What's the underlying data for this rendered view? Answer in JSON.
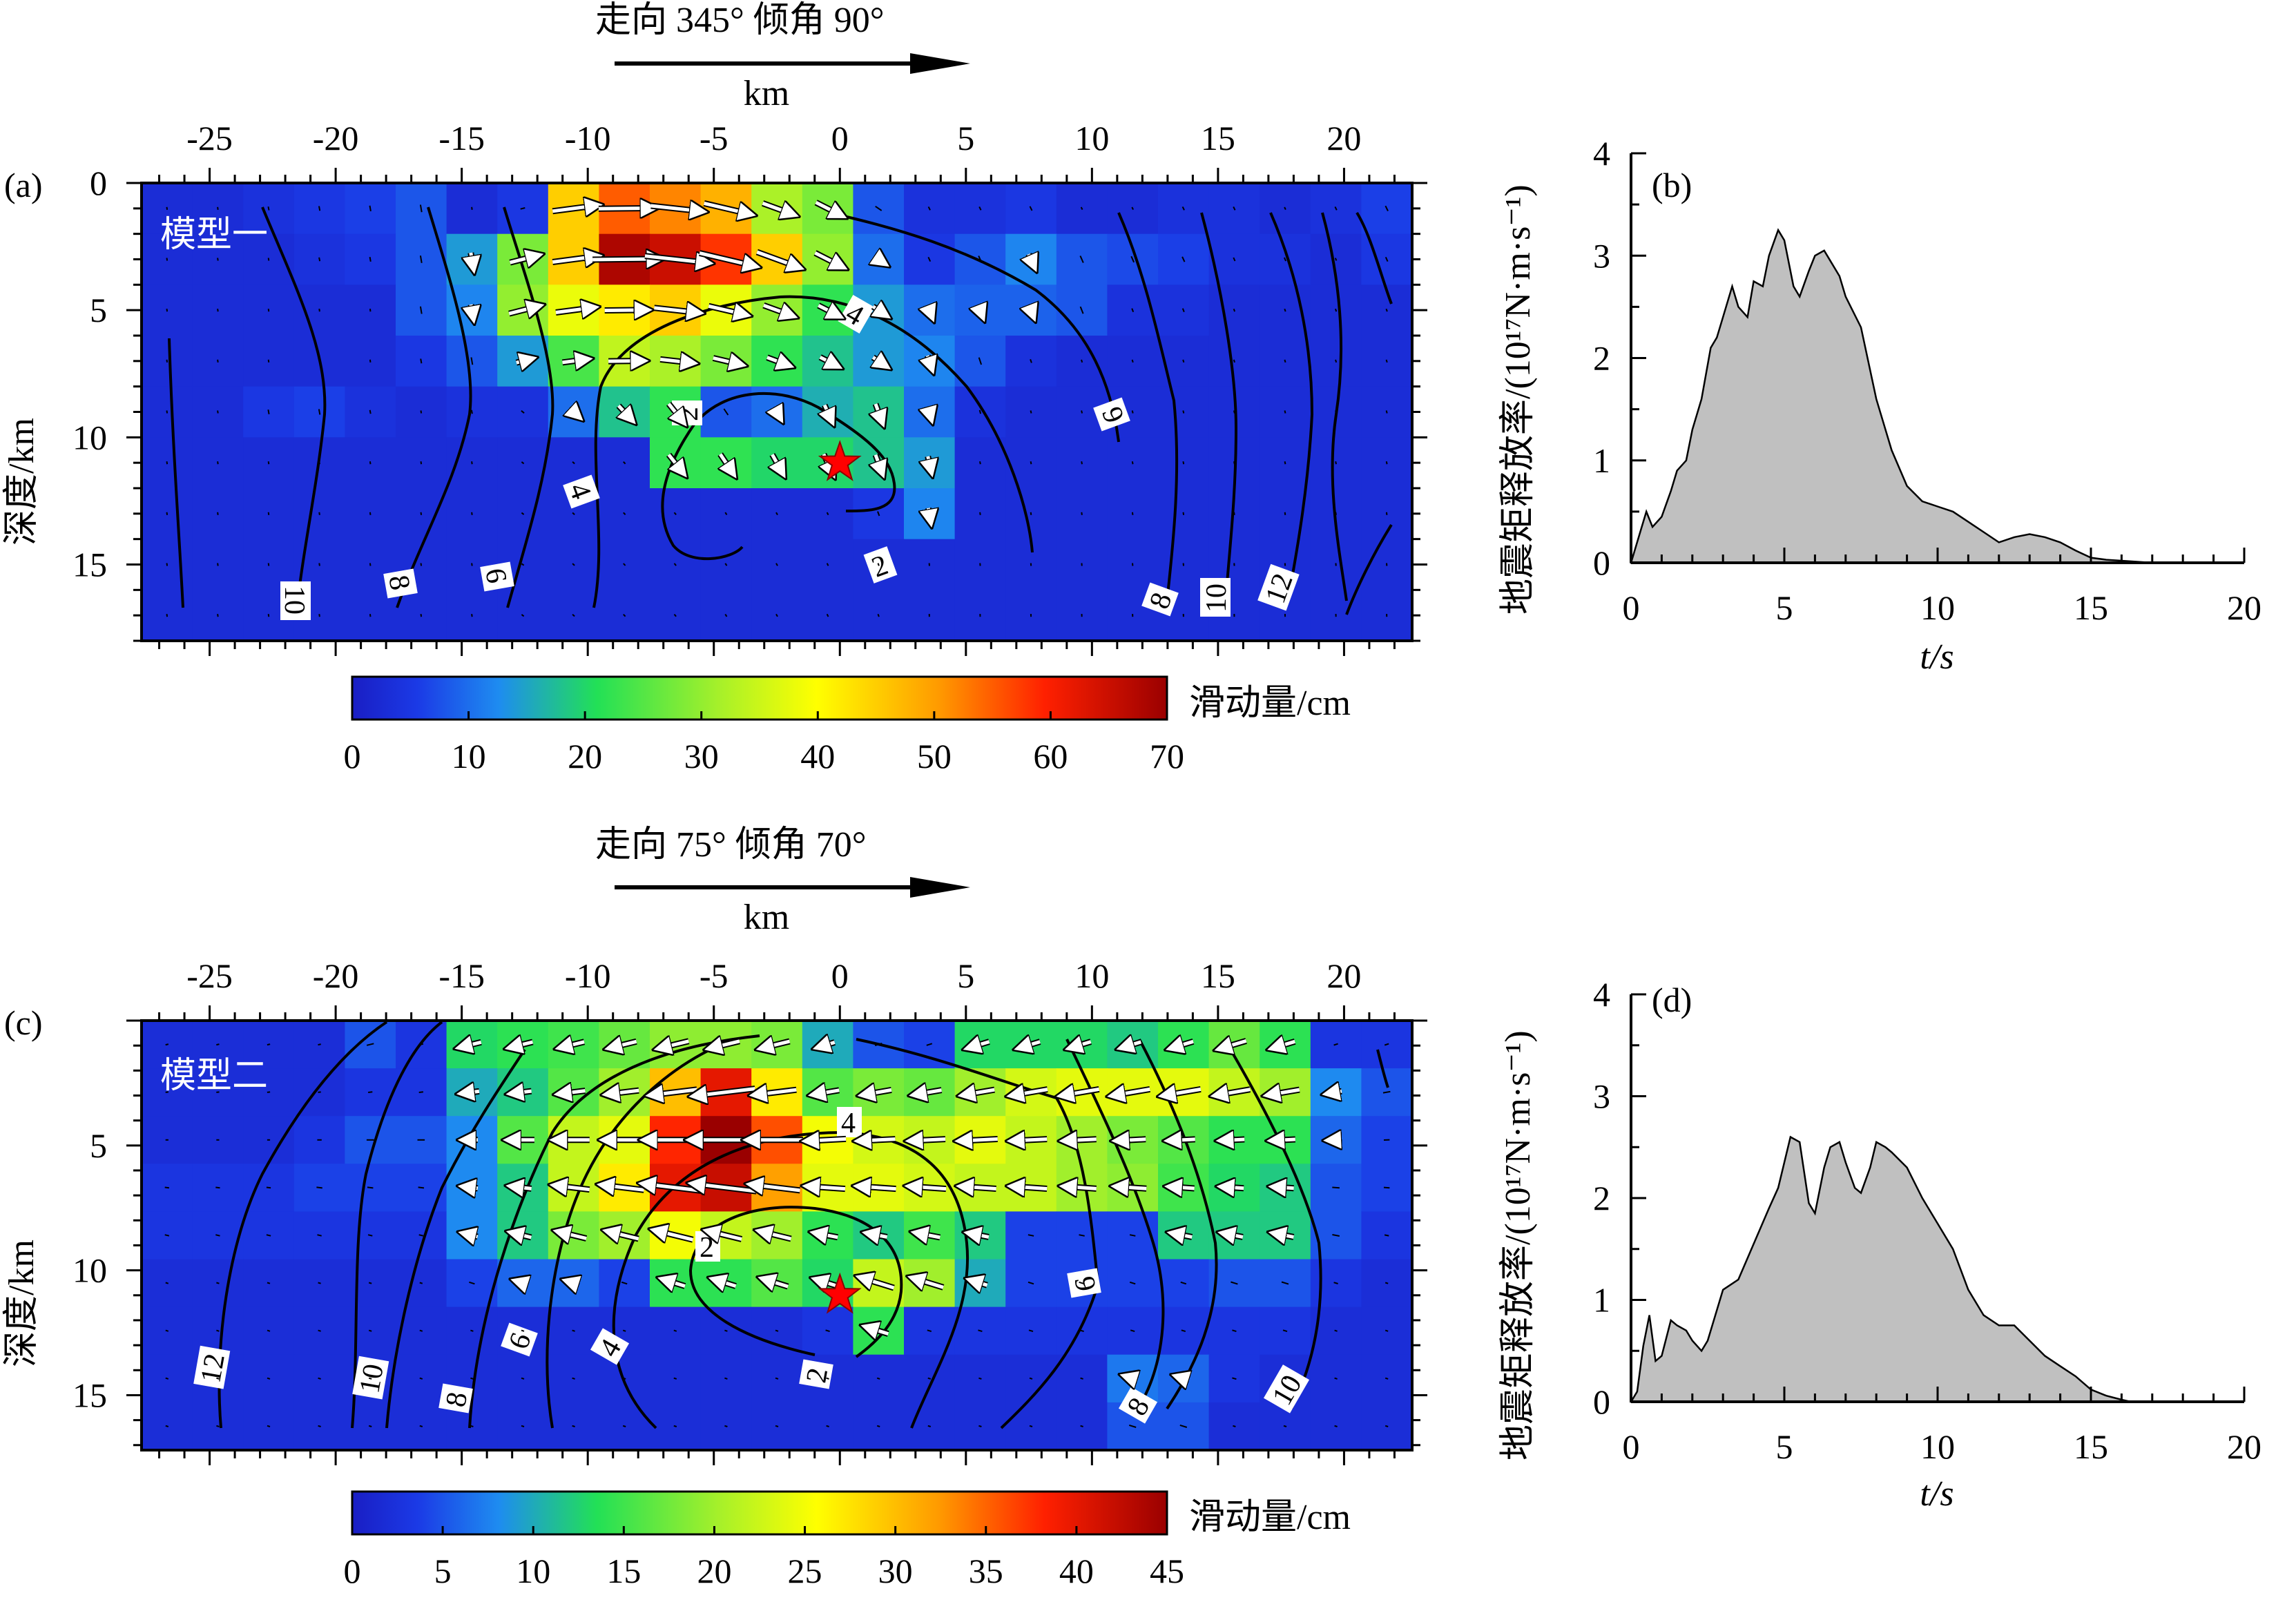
{
  "chart_data": [
    {
      "panel": "a",
      "type": "heatmap",
      "panel_label": "(a)",
      "model_label": "模型一",
      "header": "走向 345°    倾角 90°",
      "xlabel": "km",
      "ylabel": "深度/km",
      "x_ticks": [
        -25,
        -20,
        -15,
        -10,
        -5,
        0,
        5,
        10,
        15,
        20
      ],
      "y_ticks": [
        0,
        5,
        10,
        15
      ],
      "xlim": [
        -27.7,
        22.7
      ],
      "ylim": [
        0,
        18
      ],
      "colorbar": {
        "label": "滑动量/cm",
        "min": 0,
        "max": 70,
        "ticks": [
          0,
          10,
          20,
          30,
          40,
          50,
          60,
          70
        ]
      },
      "hypocenter": [
        0,
        11
      ],
      "slip_grid": {
        "cols": 25,
        "rows": 9,
        "x0": -27.7,
        "dx": 2.016,
        "y0": 0,
        "dy": 2,
        "values": [
          [
            3,
            3,
            4,
            5,
            6,
            8,
            3,
            5,
            45,
            55,
            52,
            48,
            32,
            28,
            8,
            4,
            4,
            5,
            3,
            3,
            4,
            4,
            3,
            4,
            6
          ],
          [
            3,
            3,
            3,
            4,
            5,
            8,
            14,
            28,
            45,
            68,
            65,
            58,
            45,
            30,
            10,
            5,
            8,
            12,
            8,
            7,
            6,
            4,
            4,
            3,
            5
          ],
          [
            3,
            3,
            3,
            3,
            3,
            8,
            12,
            30,
            38,
            42,
            45,
            38,
            30,
            22,
            14,
            10,
            9,
            9,
            8,
            4,
            4,
            3,
            3,
            3,
            3
          ],
          [
            3,
            3,
            3,
            3,
            3,
            5,
            8,
            14,
            24,
            34,
            32,
            28,
            22,
            18,
            14,
            12,
            8,
            4,
            3,
            3,
            3,
            3,
            3,
            3,
            3
          ],
          [
            3,
            3,
            5,
            6,
            4,
            3,
            4,
            4,
            10,
            18,
            22,
            8,
            10,
            16,
            18,
            10,
            4,
            3,
            3,
            3,
            3,
            3,
            3,
            3,
            3
          ],
          [
            3,
            3,
            3,
            3,
            3,
            3,
            3,
            3,
            3,
            3,
            22,
            22,
            20,
            20,
            18,
            14,
            3,
            3,
            3,
            3,
            3,
            3,
            3,
            3,
            3
          ],
          [
            3,
            3,
            3,
            3,
            3,
            3,
            3,
            3,
            3,
            3,
            3,
            3,
            3,
            3,
            5,
            12,
            3,
            3,
            3,
            3,
            3,
            3,
            3,
            3,
            3
          ],
          [
            3,
            3,
            3,
            3,
            3,
            3,
            3,
            3,
            3,
            3,
            3,
            3,
            3,
            3,
            3,
            3,
            3,
            3,
            3,
            3,
            3,
            3,
            3,
            3,
            3
          ],
          [
            3,
            3,
            3,
            3,
            3,
            3,
            3,
            3,
            3,
            3,
            3,
            3,
            3,
            3,
            3,
            3,
            3,
            3,
            3,
            3,
            3,
            3,
            3,
            3,
            3
          ]
        ]
      },
      "contour_labels": [
        "2",
        "4",
        "6",
        "8",
        "10",
        "12"
      ]
    },
    {
      "panel": "b",
      "type": "area",
      "panel_label": "(b)",
      "ylabel": "地震矩释放率/(10¹⁷N·m·s⁻¹)",
      "xlabel": "t/s",
      "xlim": [
        0,
        20
      ],
      "ylim": [
        0,
        4
      ],
      "x_ticks": [
        0,
        5,
        10,
        15,
        20
      ],
      "y_ticks": [
        0,
        1,
        2,
        3,
        4
      ],
      "x": [
        0,
        0.3,
        0.5,
        0.7,
        1.0,
        1.3,
        1.5,
        1.8,
        2.0,
        2.3,
        2.6,
        2.8,
        3.0,
        3.3,
        3.5,
        3.8,
        4.0,
        4.3,
        4.5,
        4.8,
        5.0,
        5.3,
        5.5,
        5.8,
        6.0,
        6.3,
        6.5,
        6.8,
        7.0,
        7.5,
        8.0,
        8.5,
        9.0,
        9.5,
        10.0,
        10.5,
        11.0,
        11.5,
        12.0,
        12.5,
        13.0,
        13.5,
        14.0,
        14.5,
        15.0,
        15.5,
        16.0,
        16.5,
        17.0
      ],
      "y": [
        0,
        0.3,
        0.5,
        0.35,
        0.45,
        0.7,
        0.9,
        1.0,
        1.3,
        1.6,
        2.1,
        2.2,
        2.4,
        2.7,
        2.5,
        2.4,
        2.75,
        2.7,
        3.0,
        3.25,
        3.15,
        2.7,
        2.6,
        2.85,
        3.0,
        3.05,
        2.95,
        2.8,
        2.6,
        2.3,
        1.6,
        1.1,
        0.75,
        0.6,
        0.55,
        0.5,
        0.4,
        0.3,
        0.2,
        0.25,
        0.28,
        0.25,
        0.2,
        0.12,
        0.05,
        0.03,
        0.02,
        0.01,
        0
      ]
    },
    {
      "panel": "c",
      "type": "heatmap",
      "panel_label": "(c)",
      "model_label": "模型二",
      "header": "走向 75°    倾角 70°",
      "xlabel": "km",
      "ylabel": "深度/km",
      "x_ticks": [
        -25,
        -20,
        -15,
        -10,
        -5,
        0,
        5,
        10,
        15,
        20
      ],
      "y_ticks": [
        5,
        10,
        15
      ],
      "xlim": [
        -27.7,
        22.7
      ],
      "ylim": [
        0,
        17.2
      ],
      "colorbar": {
        "label": "滑动量/cm",
        "min": 0,
        "max": 45,
        "ticks": [
          0,
          5,
          10,
          15,
          20,
          25,
          30,
          35,
          40,
          45
        ]
      },
      "hypocenter": [
        0,
        11
      ],
      "slip_grid": {
        "cols": 25,
        "rows": 9,
        "x0": -27.7,
        "dx": 2.016,
        "y0": 0,
        "dy": 1.911,
        "values": [
          [
            2,
            2,
            2,
            2,
            5,
            3,
            13,
            14,
            15,
            17,
            19,
            19,
            18,
            10,
            5,
            4,
            13,
            13,
            13,
            12,
            14,
            17,
            14,
            3,
            3
          ],
          [
            2,
            2,
            2,
            2,
            3,
            3,
            10,
            12,
            16,
            20,
            30,
            40,
            27,
            16,
            18,
            17,
            20,
            23,
            24,
            24,
            24,
            22,
            20,
            8,
            5
          ],
          [
            2,
            2,
            2,
            3,
            5,
            5,
            8,
            16,
            22,
            24,
            38,
            45,
            36,
            25,
            23,
            22,
            24,
            22,
            20,
            18,
            16,
            14,
            14,
            6,
            4
          ],
          [
            3,
            3,
            3,
            4,
            4,
            4,
            8,
            12,
            22,
            27,
            40,
            42,
            32,
            24,
            24,
            23,
            22,
            22,
            20,
            19,
            15,
            13,
            12,
            5,
            4
          ],
          [
            3,
            3,
            3,
            3,
            3,
            3,
            8,
            12,
            18,
            20,
            25,
            22,
            20,
            14,
            12,
            15,
            12,
            4,
            4,
            4,
            12,
            12,
            12,
            5,
            3
          ],
          [
            2,
            2,
            2,
            2,
            2,
            2,
            4,
            6,
            6,
            4,
            14,
            14,
            16,
            13,
            22,
            20,
            10,
            4,
            4,
            4,
            4,
            5,
            5,
            3,
            2
          ],
          [
            2,
            2,
            2,
            2,
            2,
            2,
            2,
            2,
            2,
            2,
            2,
            2,
            2,
            3,
            14,
            3,
            3,
            3,
            3,
            3,
            3,
            3,
            3,
            2,
            2
          ],
          [
            2,
            2,
            2,
            2,
            2,
            2,
            2,
            2,
            2,
            2,
            2,
            2,
            2,
            2,
            2,
            2,
            2,
            2,
            2,
            7,
            6,
            3,
            2,
            2,
            2
          ],
          [
            2,
            2,
            2,
            2,
            2,
            2,
            2,
            2,
            2,
            2,
            2,
            2,
            2,
            2,
            2,
            2,
            2,
            2,
            2,
            5,
            5,
            2,
            2,
            2,
            2
          ]
        ]
      },
      "contour_labels": [
        "2",
        "4",
        "6",
        "8",
        "10",
        "12"
      ]
    },
    {
      "panel": "d",
      "type": "area",
      "panel_label": "(d)",
      "ylabel": "地震矩释放率/(10¹⁷N·m·s⁻¹)",
      "xlabel": "t/s",
      "xlim": [
        0,
        20
      ],
      "ylim": [
        0,
        4
      ],
      "x_ticks": [
        0,
        5,
        10,
        15,
        20
      ],
      "y_ticks": [
        0,
        1,
        2,
        3,
        4
      ],
      "x": [
        0,
        0.2,
        0.4,
        0.6,
        0.8,
        1.0,
        1.3,
        1.5,
        1.8,
        2.0,
        2.3,
        2.5,
        3.0,
        3.5,
        4.0,
        4.5,
        4.8,
        5.0,
        5.2,
        5.5,
        5.8,
        6.0,
        6.3,
        6.5,
        6.8,
        7.0,
        7.3,
        7.5,
        7.8,
        8.0,
        8.3,
        8.5,
        9.0,
        9.5,
        10.0,
        10.5,
        11.0,
        11.5,
        12.0,
        12.5,
        13.0,
        13.5,
        14.0,
        14.5,
        15.0,
        15.5,
        16.0,
        16.3
      ],
      "y": [
        0,
        0.1,
        0.55,
        0.85,
        0.4,
        0.45,
        0.8,
        0.75,
        0.7,
        0.6,
        0.5,
        0.6,
        1.1,
        1.2,
        1.55,
        1.9,
        2.1,
        2.35,
        2.6,
        2.55,
        1.95,
        1.85,
        2.3,
        2.5,
        2.55,
        2.35,
        2.1,
        2.05,
        2.3,
        2.55,
        2.5,
        2.45,
        2.3,
        2.0,
        1.75,
        1.5,
        1.1,
        0.85,
        0.75,
        0.75,
        0.6,
        0.45,
        0.35,
        0.25,
        0.12,
        0.06,
        0.02,
        0
      ]
    }
  ]
}
